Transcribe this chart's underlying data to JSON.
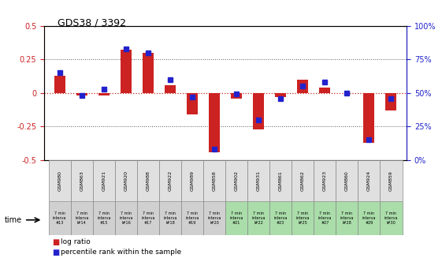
{
  "title": "GDS38 / 3392",
  "samples": [
    "GSM980",
    "GSM863",
    "GSM921",
    "GSM920",
    "GSM988",
    "GSM922",
    "GSM989",
    "GSM858",
    "GSM902",
    "GSM931",
    "GSM861",
    "GSM862",
    "GSM923",
    "GSM860",
    "GSM924",
    "GSM859"
  ],
  "time_labels": [
    "7 min\ninterva\n#13",
    "7 min\ninterva\nl#14",
    "7 min\ninterva\n#15",
    "7 min\ninterva\nl#16",
    "7 min\ninterva\n#17",
    "7 min\ninterva\nl#18",
    "7 min\ninterva\n#19",
    "7 min\ninterva\nl#20",
    "7 min\ninterva\n#21",
    "7 min\ninterva\nl#22",
    "7 min\ninterva\n#23",
    "7 min\ninterva\nl#25",
    "7 min\ninterva\n#27",
    "7 min\ninterva\nl#28",
    "7 min\ninterva\n#29",
    "7 min\ninterva\nl#30"
  ],
  "log_ratio": [
    0.13,
    -0.02,
    -0.02,
    0.32,
    0.3,
    0.06,
    -0.16,
    -0.44,
    -0.04,
    -0.27,
    -0.03,
    0.1,
    0.04,
    0.0,
    -0.37,
    -0.13
  ],
  "percentile_rank": [
    65,
    48,
    53,
    83,
    80,
    60,
    47,
    8,
    49,
    30,
    46,
    55,
    58,
    50,
    15,
    46
  ],
  "ylim_left": [
    -0.5,
    0.5
  ],
  "ylim_right": [
    0,
    100
  ],
  "yticks_left": [
    -0.5,
    -0.25,
    0.0,
    0.25,
    0.5
  ],
  "yticks_right": [
    0,
    25,
    50,
    75,
    100
  ],
  "dotted_lines": [
    -0.25,
    0.0,
    0.25
  ],
  "bar_color": "#cc2222",
  "dot_color": "#2222cc",
  "bg_color": "#ffffff",
  "legend_bar_label": "log ratio",
  "legend_dot_label": "percentile rank within the sample",
  "time_row_colors": [
    "#d0d0d0",
    "#d0d0d0",
    "#d0d0d0",
    "#d0d0d0",
    "#d0d0d0",
    "#d0d0d0",
    "#d0d0d0",
    "#d0d0d0",
    "#aaddaa",
    "#aaddaa",
    "#aaddaa",
    "#aaddaa",
    "#aaddaa",
    "#aaddaa",
    "#aaddaa",
    "#aaddaa"
  ],
  "sample_bg": "#e0e0e0",
  "bar_width": 0.5
}
